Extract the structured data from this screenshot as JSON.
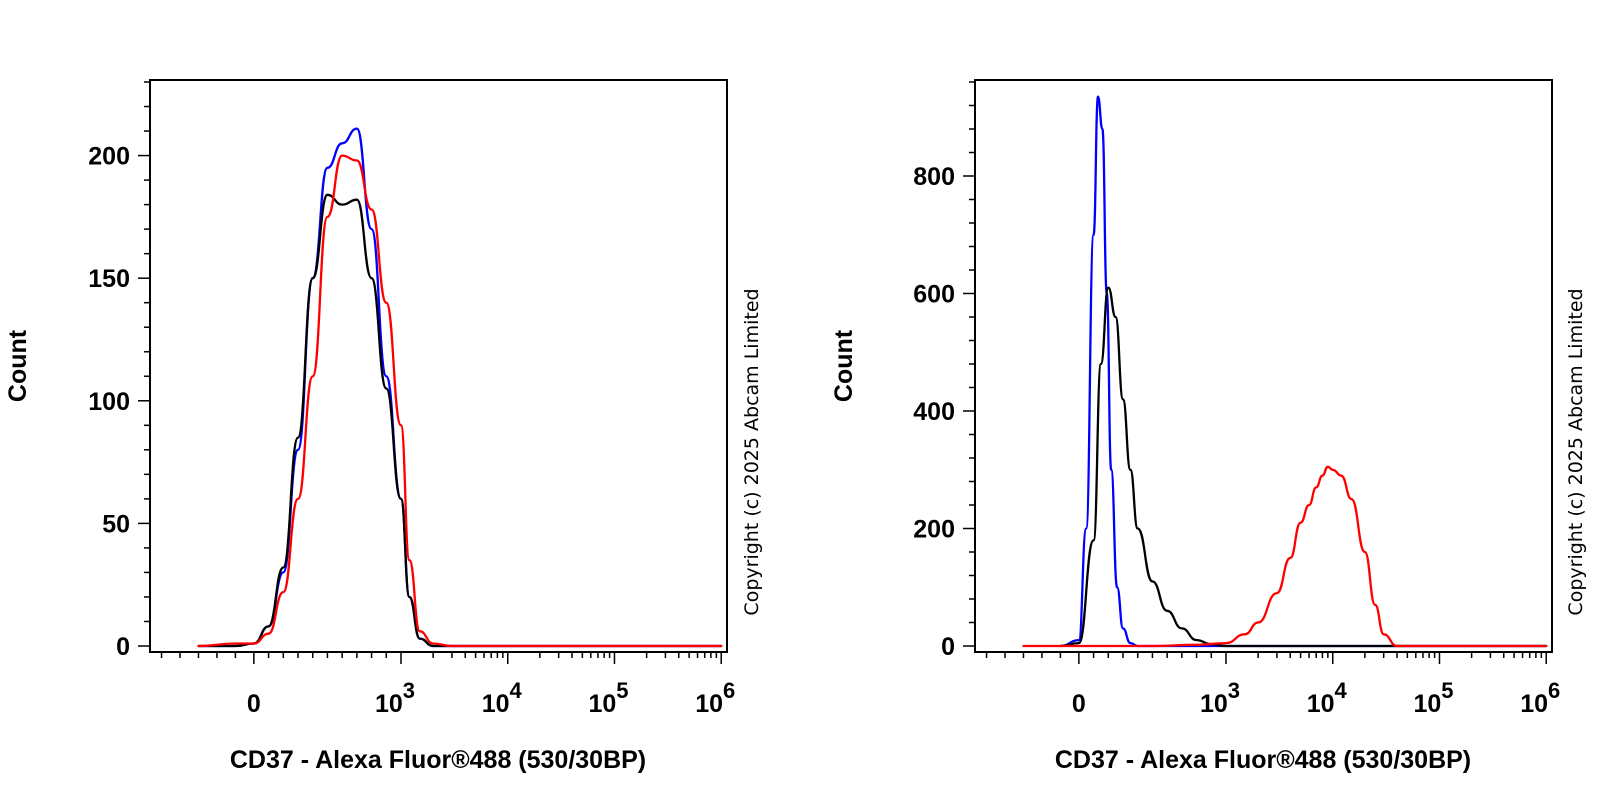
{
  "chart_data": [
    {
      "type": "line",
      "ylabel": "Count",
      "xlabel": "CD37 - Alexa Fluor®488 (530/30BP)",
      "copyright": "Copyright (c) 2025 Abcam Limited",
      "ylim": [
        0,
        230
      ],
      "y_ticks": [
        "0",
        "50",
        "100",
        "150",
        "200"
      ],
      "y_tick_values": [
        0,
        50,
        100,
        150,
        200
      ],
      "x_ticks": [
        {
          "base": "0",
          "exp": ""
        },
        {
          "base": "10",
          "exp": "3"
        },
        {
          "base": "10",
          "exp": "4"
        },
        {
          "base": "10",
          "exp": "5"
        },
        {
          "base": "10",
          "exp": "6"
        }
      ],
      "x_scale": "biexponential",
      "series": [
        {
          "color": "#0000ff",
          "x": [
            -300,
            -100,
            0,
            100,
            200,
            300,
            400,
            500,
            600,
            700,
            800,
            900,
            1000,
            1200,
            1500,
            2000,
            3000,
            1000000
          ],
          "y": [
            0,
            0,
            1,
            8,
            30,
            80,
            150,
            195,
            205,
            211,
            170,
            110,
            60,
            20,
            3,
            0,
            0,
            0
          ]
        },
        {
          "color": "#000000",
          "x": [
            -300,
            -100,
            0,
            100,
            200,
            300,
            400,
            500,
            600,
            700,
            800,
            900,
            1000,
            1200,
            1500,
            2000,
            3000,
            1000000
          ],
          "y": [
            0,
            0,
            1,
            8,
            32,
            85,
            150,
            184,
            180,
            182,
            150,
            105,
            60,
            20,
            3,
            0,
            0,
            0
          ]
        },
        {
          "color": "#ff0000",
          "x": [
            -300,
            -100,
            0,
            100,
            200,
            300,
            400,
            500,
            600,
            700,
            800,
            900,
            1000,
            1200,
            1500,
            2000,
            3000,
            1000000
          ],
          "y": [
            0,
            1,
            1,
            5,
            22,
            60,
            110,
            175,
            200,
            198,
            178,
            140,
            90,
            35,
            6,
            1,
            0,
            0
          ]
        }
      ]
    },
    {
      "type": "line",
      "ylabel": "Count",
      "xlabel": "CD37 - Alexa Fluor®488 (530/30BP)",
      "copyright": "Copyright (c) 2025 Abcam Limited",
      "ylim": [
        0,
        960
      ],
      "y_ticks": [
        "0",
        "200",
        "400",
        "600",
        "800"
      ],
      "y_tick_values": [
        0,
        200,
        400,
        600,
        800
      ],
      "x_ticks": [
        {
          "base": "0",
          "exp": ""
        },
        {
          "base": "10",
          "exp": "3"
        },
        {
          "base": "10",
          "exp": "4"
        },
        {
          "base": "10",
          "exp": "5"
        },
        {
          "base": "10",
          "exp": "6"
        }
      ],
      "x_scale": "biexponential",
      "series": [
        {
          "color": "#0000ff",
          "x": [
            -100,
            0,
            50,
            100,
            130,
            160,
            190,
            220,
            260,
            300,
            350,
            400,
            500,
            1000000
          ],
          "y": [
            0,
            10,
            200,
            700,
            935,
            880,
            600,
            300,
            100,
            30,
            5,
            0,
            0,
            0
          ]
        },
        {
          "color": "#000000",
          "x": [
            -100,
            0,
            100,
            150,
            200,
            250,
            300,
            350,
            400,
            500,
            600,
            700,
            800,
            900,
            1000,
            1000000
          ],
          "y": [
            0,
            5,
            180,
            480,
            610,
            560,
            420,
            300,
            200,
            110,
            60,
            30,
            10,
            3,
            0,
            0
          ]
        },
        {
          "color": "#ff0000",
          "x": [
            -300,
            500,
            800,
            1000,
            1500,
            2000,
            3000,
            4000,
            5000,
            6000,
            7000,
            8000,
            9000,
            10000,
            12000,
            15000,
            20000,
            25000,
            30000,
            40000,
            1000000
          ],
          "y": [
            0,
            0,
            2,
            5,
            20,
            40,
            90,
            150,
            210,
            240,
            270,
            290,
            305,
            300,
            290,
            250,
            160,
            70,
            20,
            0,
            0
          ]
        }
      ]
    }
  ]
}
